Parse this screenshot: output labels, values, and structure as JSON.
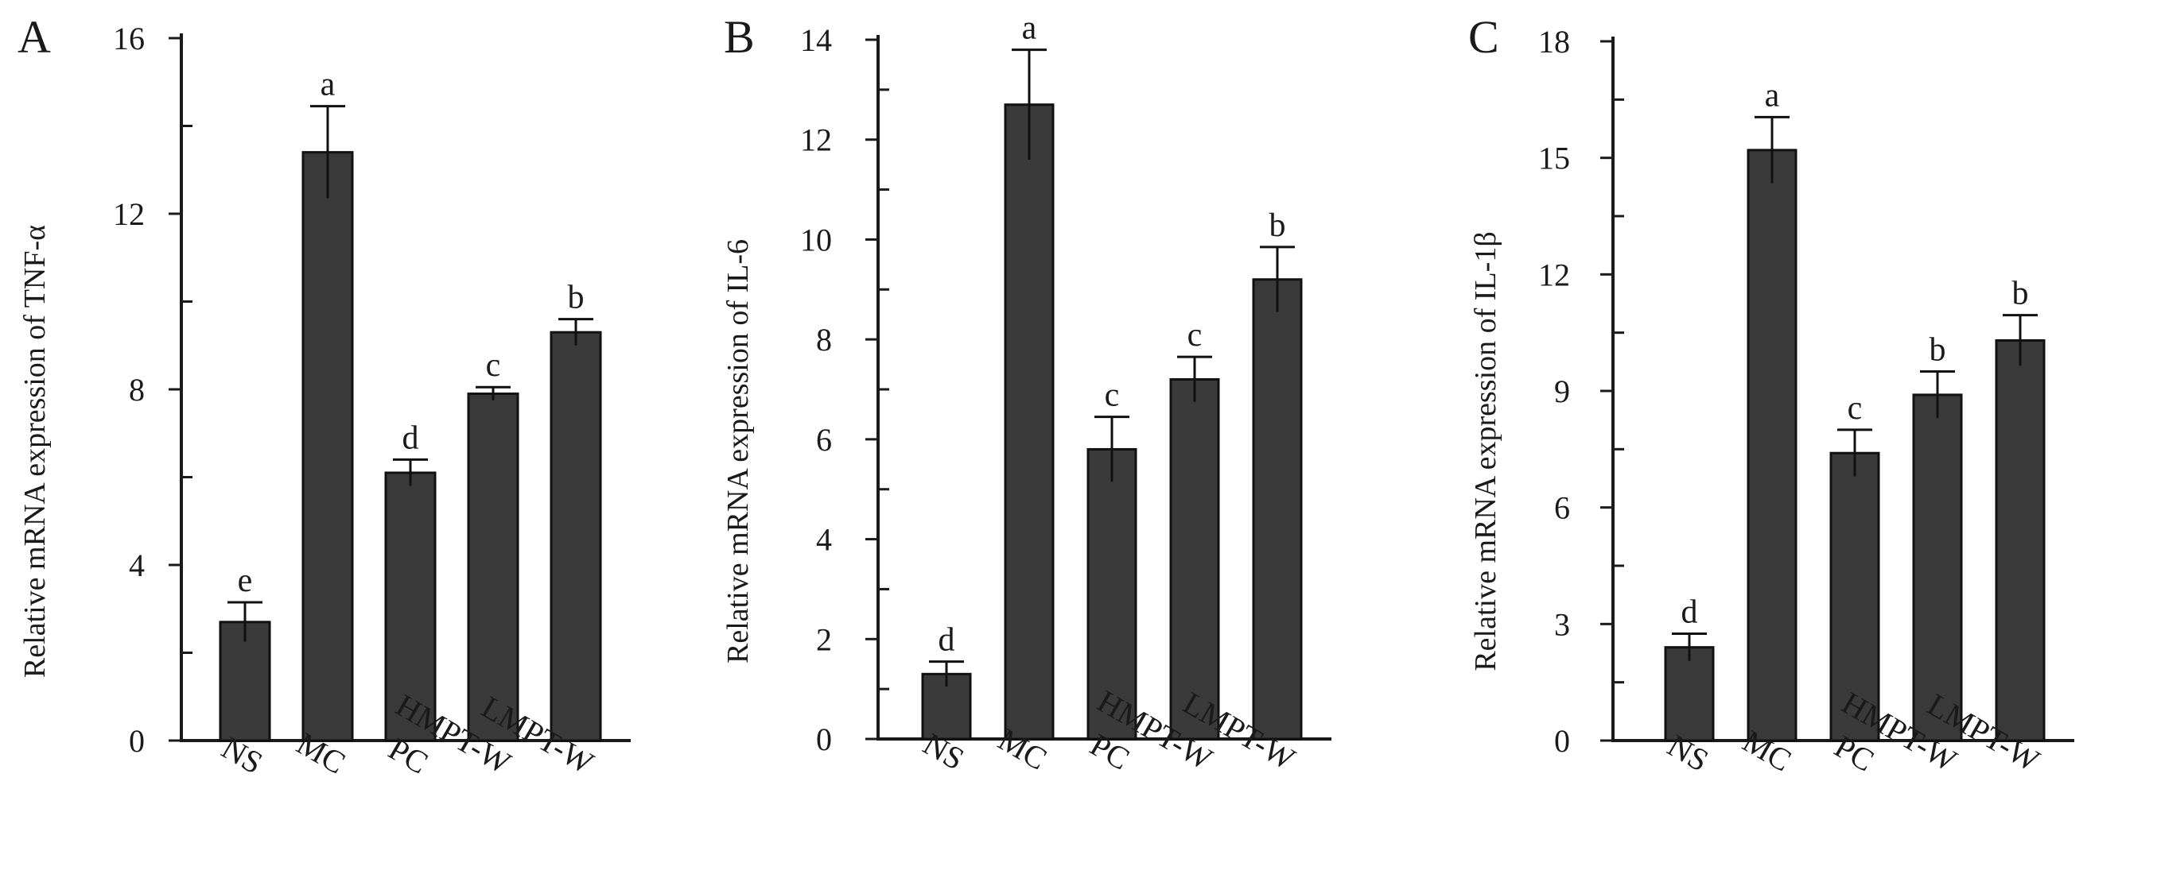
{
  "chart_data": [
    {
      "type": "bar",
      "panel": "A",
      "ylabel": "Relative mRNA expression of TNF-α",
      "ylim": [
        0,
        16
      ],
      "yticks": [
        0,
        4,
        8,
        12,
        16
      ],
      "minor_step": 2,
      "categories": [
        "NS",
        "MC",
        "PC",
        "HMPT-W",
        "LMPT-W"
      ],
      "values": [
        2.7,
        13.4,
        6.1,
        7.9,
        9.3
      ],
      "errors": [
        0.45,
        1.05,
        0.3,
        0.15,
        0.3
      ],
      "significance": [
        "e",
        "a",
        "d",
        "c",
        "b"
      ],
      "bar_color": "#3a3a3a",
      "grid": false
    },
    {
      "type": "bar",
      "panel": "B",
      "ylabel": "Relative mRNA expression of IL-6",
      "ylim": [
        0,
        14
      ],
      "yticks": [
        0,
        2,
        4,
        6,
        8,
        10,
        12,
        14
      ],
      "minor_step": 1,
      "categories": [
        "NS",
        "MC",
        "PC",
        "HMPT-W",
        "LMPT-W"
      ],
      "values": [
        1.3,
        12.7,
        5.8,
        7.2,
        9.2
      ],
      "errors": [
        0.25,
        1.1,
        0.65,
        0.45,
        0.65
      ],
      "significance": [
        "d",
        "a",
        "c",
        "c",
        "b"
      ],
      "bar_color": "#3a3a3a",
      "grid": false
    },
    {
      "type": "bar",
      "panel": "C",
      "ylabel": "Relative mRNA expression of IL-1β",
      "ylim": [
        0,
        18
      ],
      "yticks": [
        0,
        3,
        6,
        9,
        12,
        15,
        18
      ],
      "minor_step": 1.5,
      "categories": [
        "NS",
        "MC",
        "PC",
        "HMPT-W",
        "LMPT-W"
      ],
      "values": [
        2.4,
        15.2,
        7.4,
        8.9,
        10.3
      ],
      "errors": [
        0.35,
        0.85,
        0.6,
        0.6,
        0.65
      ],
      "significance": [
        "d",
        "a",
        "c",
        "b",
        "b"
      ],
      "bar_color": "#3a3a3a",
      "grid": false
    }
  ]
}
